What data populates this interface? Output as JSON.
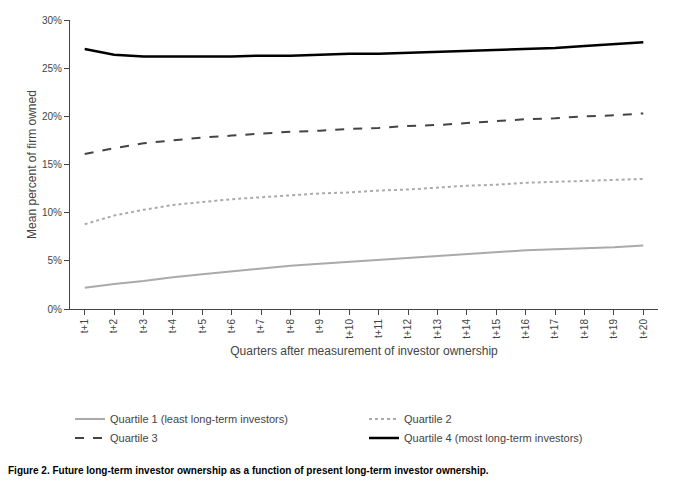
{
  "chart_data": {
    "type": "line",
    "caption": "Figure 2. Future long-term investor ownership as a function of present long-term investor ownership.",
    "x_label": "Quarters after measurement of investor ownership",
    "y_label": "Mean percent of firm owned",
    "categories": [
      "t+1",
      "t+2",
      "t+3",
      "t+4",
      "t+5",
      "t+6",
      "t+7",
      "t+8",
      "t+9",
      "t+10",
      "t+11",
      "t+12",
      "t+13",
      "t+14",
      "t+15",
      "t+16",
      "t+17",
      "t+18",
      "t+19",
      "t+20"
    ],
    "series": [
      {
        "name": "Quartile 1 (least long-term investors)",
        "color": "#aaaaaa",
        "line_style": "solid",
        "values": [
          0.022,
          0.026,
          0.029,
          0.033,
          0.036,
          0.039,
          0.042,
          0.045,
          0.047,
          0.049,
          0.051,
          0.053,
          0.055,
          0.057,
          0.059,
          0.061,
          0.062,
          0.063,
          0.064,
          0.066
        ]
      },
      {
        "name": "Quartile 2",
        "color": "#aaaaaa",
        "line_style": "dotted",
        "values": [
          0.088,
          0.097,
          0.103,
          0.108,
          0.111,
          0.114,
          0.116,
          0.118,
          0.12,
          0.121,
          0.123,
          0.124,
          0.126,
          0.128,
          0.129,
          0.131,
          0.132,
          0.133,
          0.134,
          0.135
        ]
      },
      {
        "name": "Quartile 3",
        "color": "#444444",
        "line_style": "dashed",
        "values": [
          0.161,
          0.167,
          0.172,
          0.175,
          0.178,
          0.18,
          0.182,
          0.184,
          0.185,
          0.187,
          0.188,
          0.19,
          0.191,
          0.193,
          0.195,
          0.197,
          0.198,
          0.2,
          0.201,
          0.203
        ]
      },
      {
        "name": "Quartile 4 (most long-term investors)",
        "color": "#000000",
        "line_style": "solid",
        "values": [
          0.27,
          0.264,
          0.262,
          0.262,
          0.262,
          0.262,
          0.263,
          0.263,
          0.264,
          0.265,
          0.265,
          0.266,
          0.267,
          0.268,
          0.269,
          0.27,
          0.271,
          0.273,
          0.275,
          0.277
        ]
      }
    ],
    "ylim": [
      0.0,
      0.3
    ],
    "yticks": [
      {
        "value": 0.0,
        "label": "0%"
      },
      {
        "value": 0.05,
        "label": "5%"
      },
      {
        "value": 0.1,
        "label": "10%"
      },
      {
        "value": 0.15,
        "label": "15%"
      },
      {
        "value": 0.2,
        "label": "20%"
      },
      {
        "value": 0.25,
        "label": "25%"
      },
      {
        "value": 0.3,
        "label": "30%"
      }
    ],
    "grid": false,
    "legend": "bottom"
  }
}
